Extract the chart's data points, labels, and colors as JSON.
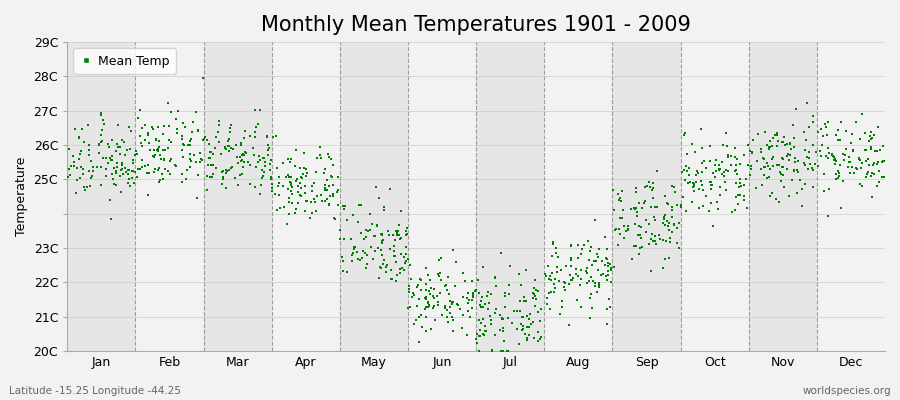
{
  "title": "Monthly Mean Temperatures 1901 - 2009",
  "ylabel": "Temperature",
  "subtitle_left": "Latitude -15.25 Longitude -44.25",
  "subtitle_right": "worldspecies.org",
  "legend_label": "Mean Temp",
  "months": [
    "Jan",
    "Feb",
    "Mar",
    "Apr",
    "May",
    "Jun",
    "Jul",
    "Aug",
    "Sep",
    "Oct",
    "Nov",
    "Dec"
  ],
  "ylim": [
    20.0,
    29.0
  ],
  "yticks": [
    20,
    21,
    22,
    23,
    24,
    25,
    26,
    27,
    28,
    29
  ],
  "ytick_labels": [
    "20C",
    "21C",
    "22C",
    "23C",
    "",
    "25C",
    "26C",
    "27C",
    "28C",
    "29C"
  ],
  "n_years": 109,
  "mean_temps": [
    25.5,
    25.8,
    25.6,
    24.8,
    23.2,
    21.6,
    21.0,
    22.2,
    23.8,
    25.0,
    25.6,
    25.7
  ],
  "std_temps": [
    0.55,
    0.55,
    0.55,
    0.55,
    0.65,
    0.55,
    0.55,
    0.55,
    0.6,
    0.65,
    0.65,
    0.55
  ],
  "dot_color": "#008000",
  "bg_color": "#f2f2f2",
  "plot_bg_color": "#f2f2f2",
  "alt_band_color": "#e6e6e6",
  "dot_size": 3,
  "title_fontsize": 15,
  "axis_fontsize": 9,
  "label_fontsize": 9,
  "dashed_line_color": "#888888"
}
